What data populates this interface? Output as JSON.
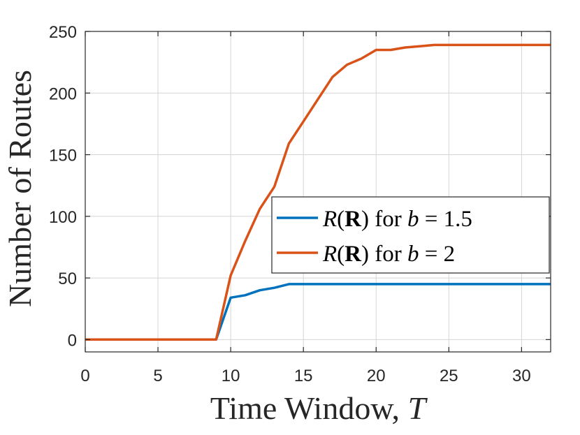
{
  "chart_data": {
    "type": "line",
    "xlabel": "Time Window, T",
    "ylabel": "Number of Routes",
    "xlim": [
      0,
      32
    ],
    "ylim": [
      -10,
      250
    ],
    "xticks": [
      0,
      5,
      10,
      15,
      20,
      25,
      30
    ],
    "yticks": [
      0,
      50,
      100,
      150,
      200,
      250
    ],
    "xtick_labels": [
      "0",
      "5",
      "10",
      "15",
      "20",
      "25",
      "30"
    ],
    "ytick_labels": [
      "0",
      "50",
      "100",
      "150",
      "200",
      "250"
    ],
    "grid": true,
    "legend_position": "center-right",
    "series": [
      {
        "name": "R(R) for b = 1.5",
        "color": "#0072bd",
        "x": [
          0,
          1,
          2,
          3,
          4,
          5,
          6,
          7,
          8,
          9,
          10,
          11,
          12,
          13,
          14,
          15,
          16,
          17,
          18,
          19,
          20,
          21,
          22,
          23,
          24,
          25,
          26,
          27,
          28,
          29,
          30,
          31,
          32
        ],
        "y": [
          0,
          0,
          0,
          0,
          0,
          0,
          0,
          0,
          0,
          0,
          34,
          36,
          40,
          42,
          45,
          45,
          45,
          45,
          45,
          45,
          45,
          45,
          45,
          45,
          45,
          45,
          45,
          45,
          45,
          45,
          45,
          45,
          45
        ]
      },
      {
        "name": "R(R) for b = 2",
        "color": "#d95319",
        "x": [
          0,
          1,
          2,
          3,
          4,
          5,
          6,
          7,
          8,
          9,
          10,
          11,
          12,
          13,
          14,
          15,
          16,
          17,
          18,
          19,
          20,
          21,
          22,
          23,
          24,
          25,
          26,
          27,
          28,
          29,
          30,
          31,
          32
        ],
        "y": [
          0,
          0,
          0,
          0,
          0,
          0,
          0,
          0,
          0,
          0,
          52,
          80,
          106,
          124,
          159,
          177,
          195,
          213,
          223,
          228,
          235,
          235,
          237,
          238,
          239,
          239,
          239,
          239,
          239,
          239,
          239,
          239,
          239
        ]
      }
    ]
  },
  "legend": [
    {
      "prefix": "R",
      "paren_open": "(",
      "bold": "R",
      "paren_close": ")",
      "mid": " for ",
      "var": "b",
      "rest": " = 1.5"
    },
    {
      "prefix": "R",
      "paren_open": "(",
      "bold": "R",
      "paren_close": ")",
      "mid": " for ",
      "var": "b",
      "rest": " = 2"
    }
  ],
  "xlabel_parts": {
    "main": "Time Window, ",
    "var": "T"
  }
}
